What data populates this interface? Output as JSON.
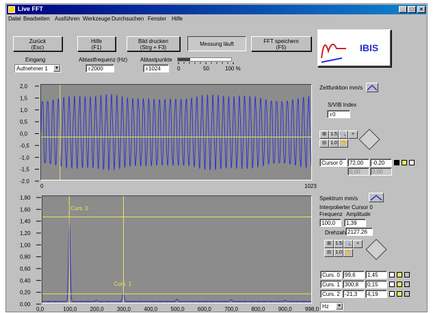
{
  "window": {
    "title": "Live FFT"
  },
  "menu": [
    "Datei",
    "Bearbeiten",
    "Ausführen",
    "Werkzeuge",
    "Durchsuchen",
    "Fenster",
    "Hilfe"
  ],
  "toolbar": {
    "back": [
      "Zurück",
      "(Esc)"
    ],
    "help": [
      "Hilfe",
      "(F1)"
    ],
    "print": [
      "Bild drucken",
      "(Strg + F3)"
    ],
    "measure": "Messung läuft",
    "save": [
      "FFT speichern",
      "(F5)"
    ]
  },
  "settings": {
    "input_label": "Eingang",
    "input_value": "Aufnehmer 1",
    "freq_label": "Abtastfrequenz (Hz)",
    "freq_value": "2000",
    "points_label": "Abtastpunkte",
    "points_value": "1024",
    "slider_labels": [
      "0",
      "50",
      "100 %"
    ]
  },
  "logo": {
    "text": "IBIS"
  },
  "time_plot": {
    "yticks": [
      "2,0",
      "1,5",
      "1,0",
      "0,5",
      "0,0",
      "-0,5",
      "-1,0",
      "-1,5",
      "-2,0"
    ],
    "xticks": [
      "0",
      "1023"
    ]
  },
  "spectrum_plot": {
    "yticks": [
      "1,80",
      "1,60",
      "1,40",
      "1,20",
      "1,00",
      "0,80",
      "0,60",
      "0,40",
      "0,20",
      "0,00"
    ],
    "xticks": [
      "0,0",
      "100,0",
      "200,0",
      "300,0",
      "400,0",
      "500,0",
      "600,0",
      "700,0",
      "800,0",
      "900,0",
      "998,0"
    ],
    "cursor0_label": "Curs. 0",
    "cursor1_label": "Curs. 1"
  },
  "right_panel": {
    "time_func_label": "Zeitfunktion mm/s",
    "svib_label": "S/VIB Index",
    "svib_value": "0",
    "cursor0": {
      "label": "Cursor 0",
      "x": "72,00",
      "y": "-0,20",
      "x2": "0,00",
      "y2": "0,00"
    },
    "spectrum_label": "Spektrum mm/s",
    "interp_label": "Interpolierter Cursor 0",
    "freq_col": "Frequenz",
    "amp_col": "Amplitude",
    "freq_value": "100,0",
    "amp_value": "1,39",
    "speed_label": "Drehzahl",
    "speed_value": "2127,26",
    "cursors": [
      {
        "label": "Curs. 0",
        "x": "99,6",
        "y": "1,45"
      },
      {
        "label": "Curs. 1",
        "x": "300,8",
        "y": "0,15"
      },
      {
        "label": "Curs. 2",
        "x": "-21,3",
        "y": "4,19"
      }
    ],
    "unit_value": "Hz"
  },
  "colors": {
    "plot_bg": "#8c8c8c",
    "trace": "#2a2ad8",
    "cursor": "#e8e860",
    "titlebar": "#000080"
  }
}
